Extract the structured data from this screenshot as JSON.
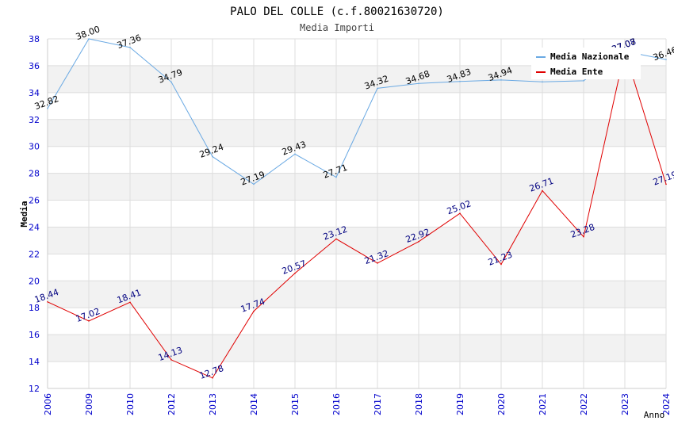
{
  "chart_data": {
    "type": "line",
    "title": "PALO DEL COLLE (c.f.80021630720)",
    "subtitle": "Media Importi",
    "xlabel": "Anno",
    "ylabel": "Media",
    "ylim": [
      12,
      38
    ],
    "yticks": [
      12,
      14,
      16,
      18,
      20,
      22,
      24,
      26,
      28,
      30,
      32,
      34,
      36,
      38
    ],
    "categories": [
      "2006",
      "2009",
      "2010",
      "2012",
      "2013",
      "2014",
      "2015",
      "2016",
      "2017",
      "2018",
      "2019",
      "2020",
      "2021",
      "2022",
      "2023",
      "2024"
    ],
    "series": [
      {
        "name": "Media Nazionale",
        "color": "#6aa9e3",
        "label_color": "#000000",
        "values": [
          32.82,
          38.0,
          37.36,
          34.79,
          29.24,
          27.19,
          29.43,
          27.71,
          34.32,
          34.68,
          34.83,
          34.94,
          34.8,
          34.88,
          37.07,
          36.46
        ],
        "labels": [
          "32.82",
          "38.00",
          "37.36",
          "34.79",
          "29.24",
          "27.19",
          "29.43",
          "27.71",
          "34.32",
          "34.68",
          "34.83",
          "34.94",
          "",
          "",
          "37.07",
          "36.46"
        ]
      },
      {
        "name": "Media Ente",
        "color": "#e00000",
        "label_color": "#000080",
        "values": [
          18.44,
          17.02,
          18.41,
          14.13,
          12.78,
          17.74,
          20.57,
          23.12,
          21.32,
          22.92,
          25.02,
          21.23,
          26.71,
          23.28,
          37.08,
          27.19
        ],
        "labels": [
          "18.44",
          "17.02",
          "18.41",
          "14.13",
          "12.78",
          "17.74",
          "20.57",
          "23.12",
          "21.32",
          "22.92",
          "25.02",
          "21.23",
          "26.71",
          "23.28",
          "37.08",
          "27.19"
        ]
      }
    ],
    "legend": "top-right",
    "grid": true
  }
}
